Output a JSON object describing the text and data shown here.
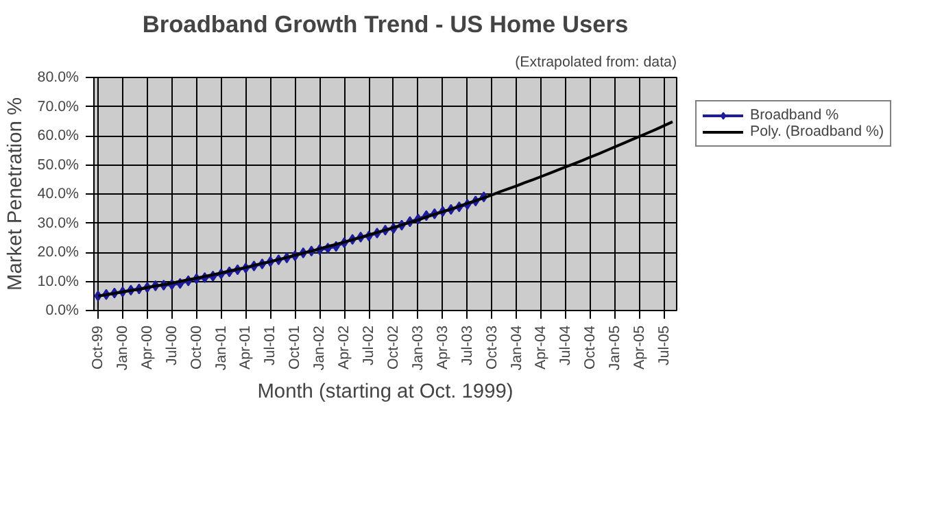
{
  "chart_data": {
    "type": "line",
    "title": "Broadband Growth Trend - US Home Users",
    "subtitle": "(Extrapolated from: data)",
    "xlabel": "Month (starting at Oct. 1999)",
    "ylabel": "Market Penetration %",
    "categories": [
      "Oct-99",
      null,
      null,
      "Jan-00",
      null,
      null,
      "Apr-00",
      null,
      null,
      "Jul-00",
      null,
      null,
      "Oct-00",
      null,
      null,
      "Jan-01",
      null,
      null,
      "Apr-01",
      null,
      null,
      "Jul-01",
      null,
      null,
      "Oct-01",
      null,
      null,
      "Jan-02",
      null,
      null,
      "Apr-02",
      null,
      null,
      "Jul-02",
      null,
      null,
      "Oct-02",
      null,
      null,
      "Jan-03",
      null,
      null,
      "Apr-03",
      null,
      null,
      "Jul-03",
      null,
      null,
      "Oct-03",
      null,
      null,
      "Jan-04",
      null,
      null,
      "Apr-04",
      null,
      null,
      "Jul-04",
      null,
      null,
      "Oct-04",
      null,
      null,
      "Jan-05",
      null,
      null,
      "Apr-05",
      null,
      null,
      "Jul-05",
      null
    ],
    "ylim": [
      0,
      80
    ],
    "yticks": [
      {
        "value": 0,
        "label": "0.0%"
      },
      {
        "value": 10,
        "label": "10.0%"
      },
      {
        "value": 20,
        "label": "20.0%"
      },
      {
        "value": 30,
        "label": "30.0%"
      },
      {
        "value": 40,
        "label": "40.0%"
      },
      {
        "value": 50,
        "label": "50.0%"
      },
      {
        "value": 60,
        "label": "60.0%"
      },
      {
        "value": 70,
        "label": "70.0%"
      },
      {
        "value": 80,
        "label": "80.0%"
      }
    ],
    "grid": true,
    "legend": "right",
    "series": [
      {
        "name": "Broadband %",
        "color": "#1c1c9c",
        "marker": "diamond",
        "values": [
          5.0,
          5.5,
          6.0,
          6.4,
          7.0,
          7.4,
          7.9,
          8.5,
          8.7,
          8.9,
          9.3,
          10.2,
          10.9,
          11.3,
          11.8,
          12.6,
          13.3,
          14.0,
          14.6,
          15.3,
          16.0,
          16.8,
          17.4,
          18.1,
          18.8,
          19.8,
          20.4,
          20.9,
          21.4,
          22.0,
          23.3,
          24.4,
          25.2,
          25.6,
          26.6,
          27.6,
          28.2,
          29.3,
          30.5,
          31.4,
          32.6,
          33.2,
          34.0,
          34.7,
          35.6,
          36.4,
          37.6,
          39.0,
          null,
          null,
          null,
          null,
          null,
          null,
          null,
          null,
          null,
          null,
          null,
          null,
          null,
          null,
          null,
          null,
          null,
          null,
          null,
          null,
          null,
          null,
          null
        ]
      },
      {
        "name": "Poly. (Broadband %)",
        "color": "#000000",
        "marker": "none",
        "values": [
          5.0,
          5.4,
          5.9,
          6.4,
          6.9,
          7.3,
          7.9,
          8.4,
          8.9,
          9.4,
          10.0,
          10.6,
          11.1,
          11.7,
          12.3,
          12.9,
          13.6,
          14.2,
          14.8,
          15.5,
          16.2,
          16.8,
          17.5,
          18.2,
          19.0,
          19.7,
          20.4,
          21.2,
          22.0,
          22.7,
          23.5,
          24.3,
          25.1,
          26.0,
          26.8,
          27.6,
          28.5,
          29.4,
          30.3,
          31.1,
          32.1,
          33.0,
          33.9,
          34.8,
          35.8,
          36.8,
          37.7,
          38.7,
          39.7,
          40.8,
          41.8,
          42.8,
          43.9,
          44.9,
          46.0,
          47.1,
          48.2,
          49.3,
          50.4,
          51.5,
          52.7,
          53.8,
          55.0,
          56.2,
          57.4,
          58.6,
          59.8,
          61.0,
          62.2,
          63.5,
          64.8
        ]
      }
    ]
  }
}
